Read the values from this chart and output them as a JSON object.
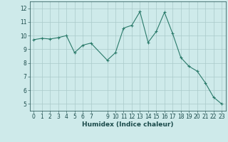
{
  "x": [
    0,
    1,
    2,
    3,
    4,
    5,
    6,
    7,
    9,
    10,
    11,
    12,
    13,
    14,
    15,
    16,
    17,
    18,
    19,
    20,
    21,
    22,
    23
  ],
  "y": [
    9.7,
    9.8,
    9.75,
    9.85,
    10.0,
    8.75,
    9.3,
    9.45,
    8.2,
    8.75,
    10.55,
    10.75,
    11.75,
    9.5,
    10.3,
    11.7,
    10.15,
    8.4,
    7.75,
    7.4,
    6.55,
    5.5,
    5.0
  ],
  "line_color": "#2a7a6a",
  "marker": "+",
  "marker_size": 3,
  "bg_color": "#ceeaea",
  "grid_color": "#aacaca",
  "xlabel": "Humidex (Indice chaleur)",
  "ylim": [
    4.5,
    12.5
  ],
  "xlim": [
    -0.5,
    23.5
  ],
  "yticks": [
    5,
    6,
    7,
    8,
    9,
    10,
    11,
    12
  ],
  "xticks": [
    0,
    1,
    2,
    3,
    4,
    5,
    6,
    7,
    9,
    10,
    11,
    12,
    13,
    14,
    15,
    16,
    17,
    18,
    19,
    20,
    21,
    22,
    23
  ],
  "tick_fontsize": 5.5,
  "xlabel_fontsize": 6.5,
  "label_color": "#1a4a4a"
}
